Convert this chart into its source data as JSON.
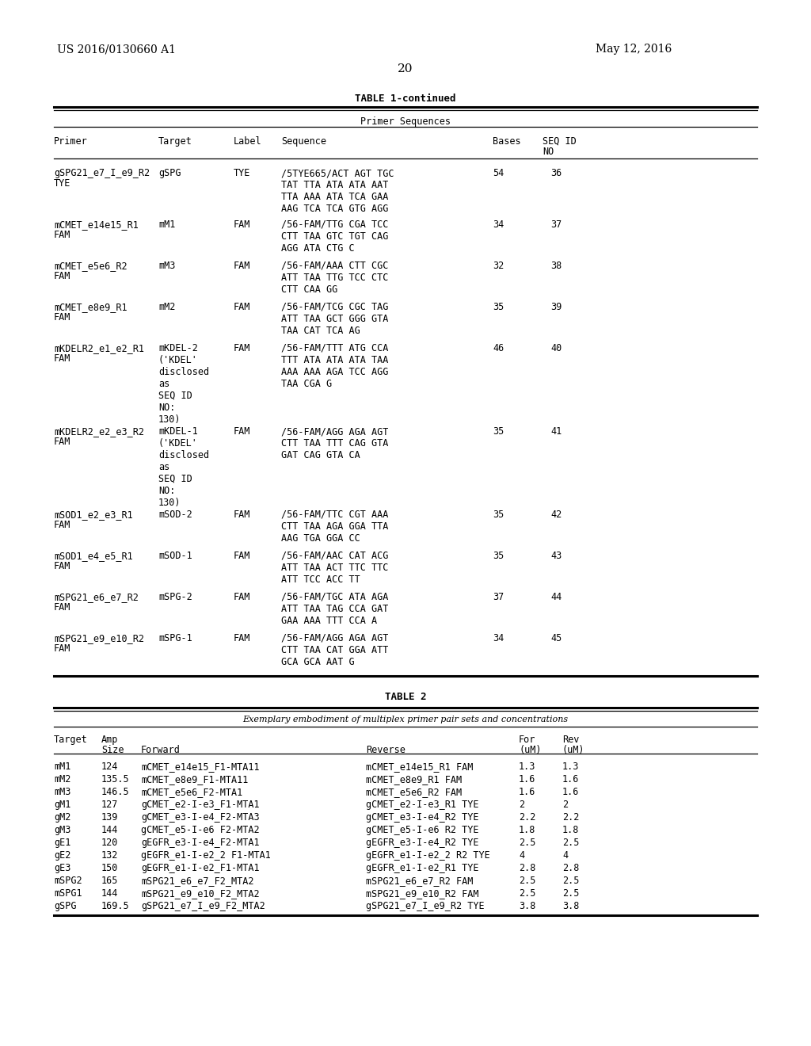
{
  "page_header_left": "US 2016/0130660 A1",
  "page_header_right": "May 12, 2016",
  "page_number": "20",
  "table1_title": "TABLE 1-continued",
  "table1_subtitle": "Primer Sequences",
  "table1_rows": [
    [
      "gSPG21_e7_I_e9_R2",
      "TYE",
      "gSPG",
      "TYE",
      "/5TYE665/ACT AGT TGC",
      "TAT TTA ATA ATA AAT",
      "TTA AAA ATA TCA GAA",
      "AAG TCA TCA GTG AGG",
      "",
      "54",
      "36"
    ],
    [
      "mCMET_e14e15_R1",
      "FAM",
      "mM1",
      "FAM",
      "/56-FAM/TTG CGA TCC",
      "CTT TAA GTC TGT CAG",
      "AGG ATA CTG C",
      "",
      "",
      "34",
      "37"
    ],
    [
      "mCMET_e5e6_R2",
      "FAM",
      "mM3",
      "FAM",
      "/56-FAM/AAA CTT CGC",
      "ATT TAA TTG TCC CTC",
      "CTT CAA GG",
      "",
      "",
      "32",
      "38"
    ],
    [
      "mCMET_e8e9_R1",
      "FAM",
      "mM2",
      "FAM",
      "/56-FAM/TCG CGC TAG",
      "ATT TAA GCT GGG GTA",
      "TAA CAT TCA AG",
      "",
      "",
      "35",
      "39"
    ],
    [
      "mKDELR2_e1_e2_R1",
      "FAM",
      "mKDEL-2",
      "FAM",
      "/56-FAM/TTT ATG CCA",
      "TTT ATA ATA ATA TAA",
      "AAA AAA AGA TCC AGG",
      "TAA CGA G",
      "",
      "46",
      "40"
    ],
    [
      "mKDELR2_e2_e3_R2",
      "FAM",
      "mKDEL-1",
      "FAM",
      "/56-FAM/AGG AGA AGT",
      "CTT TAA TTT CAG GTA",
      "GAT CAG GTA CA",
      "",
      "",
      "35",
      "41"
    ],
    [
      "mSOD1_e2_e3_R1",
      "FAM",
      "mSOD-2",
      "FAM",
      "/56-FAM/TTC CGT AAA",
      "CTT TAA AGA GGA TTA",
      "AAG TGA GGA CC",
      "",
      "",
      "35",
      "42"
    ],
    [
      "mSOD1_e4_e5_R1",
      "FAM",
      "mSOD-1",
      "FAM",
      "/56-FAM/AAC CAT ACG",
      "ATT TAA ACT TTC TTC",
      "ATT TCC ACC TT",
      "",
      "",
      "35",
      "43"
    ],
    [
      "mSPG21_e6_e7_R2",
      "FAM",
      "mSPG-2",
      "FAM",
      "/56-FAM/TGC ATA AGA",
      "ATT TAA TAG CCA GAT",
      "GAA AAA TTT CCA A",
      "",
      "",
      "37",
      "44"
    ],
    [
      "mSPG21_e9_e10_R2",
      "FAM",
      "mSPG-1",
      "FAM",
      "/56-FAM/AGG AGA AGT",
      "CTT TAA CAT GGA ATT",
      "GCA GCA AAT G",
      "",
      "",
      "34",
      "45"
    ]
  ],
  "table2_title": "TABLE 2",
  "table2_subtitle": "Exemplary embodiment of multiplex primer pair sets and concentrations",
  "table2_rows": [
    [
      "mM1",
      "124",
      "mCMET_e14e15_F1-MTA11",
      "mCMET_e14e15_R1 FAM",
      "1.3",
      "1.3"
    ],
    [
      "mM2",
      "135.5",
      "mCMET_e8e9_F1-MTA11",
      "mCMET_e8e9_R1 FAM",
      "1.6",
      "1.6"
    ],
    [
      "mM3",
      "146.5",
      "mCMET_e5e6_F2-MTA1",
      "mCMET_e5e6_R2 FAM",
      "1.6",
      "1.6"
    ],
    [
      "gM1",
      "127",
      "gCMET_e2-I-e3_F1-MTA1",
      "gCMET_e2-I-e3_R1 TYE",
      "2",
      "2"
    ],
    [
      "gM2",
      "139",
      "gCMET_e3-I-e4_F2-MTA3",
      "gCMET_e3-I-e4_R2 TYE",
      "2.2",
      "2.2"
    ],
    [
      "gM3",
      "144",
      "gCMET_e5-I-e6 F2-MTA2",
      "gCMET_e5-I-e6 R2 TYE",
      "1.8",
      "1.8"
    ],
    [
      "gE1",
      "120",
      "gEGFR_e3-I-e4_F2-MTA1",
      "gEGFR_e3-I-e4_R2 TYE",
      "2.5",
      "2.5"
    ],
    [
      "gE2",
      "132",
      "gEGFR_e1-I-e2_2 F1-MTA1",
      "gEGFR_e1-I-e2_2 R2 TYE",
      "4",
      "4"
    ],
    [
      "gE3",
      "150",
      "gEGFR_e1-I-e2_F1-MTA1",
      "gEGFR_e1-I-e2_R1 TYE",
      "2.8",
      "2.8"
    ],
    [
      "mSPG2",
      "165",
      "mSPG21_e6_e7_F2_MTA2",
      "mSPG21_e6_e7_R2 FAM",
      "2.5",
      "2.5"
    ],
    [
      "mSPG1",
      "144",
      "mSPG21_e9_e10_F2_MTA2",
      "mSPG21_e9_e10_R2 FAM",
      "2.5",
      "2.5"
    ],
    [
      "gSPG",
      "169.5",
      "gSPG21_e7_I_e9_F2_MTA2",
      "gSPG21_e7_I_e9_R2 TYE",
      "3.8",
      "3.8"
    ]
  ],
  "bg_color": "#ffffff",
  "text_color": "#000000"
}
